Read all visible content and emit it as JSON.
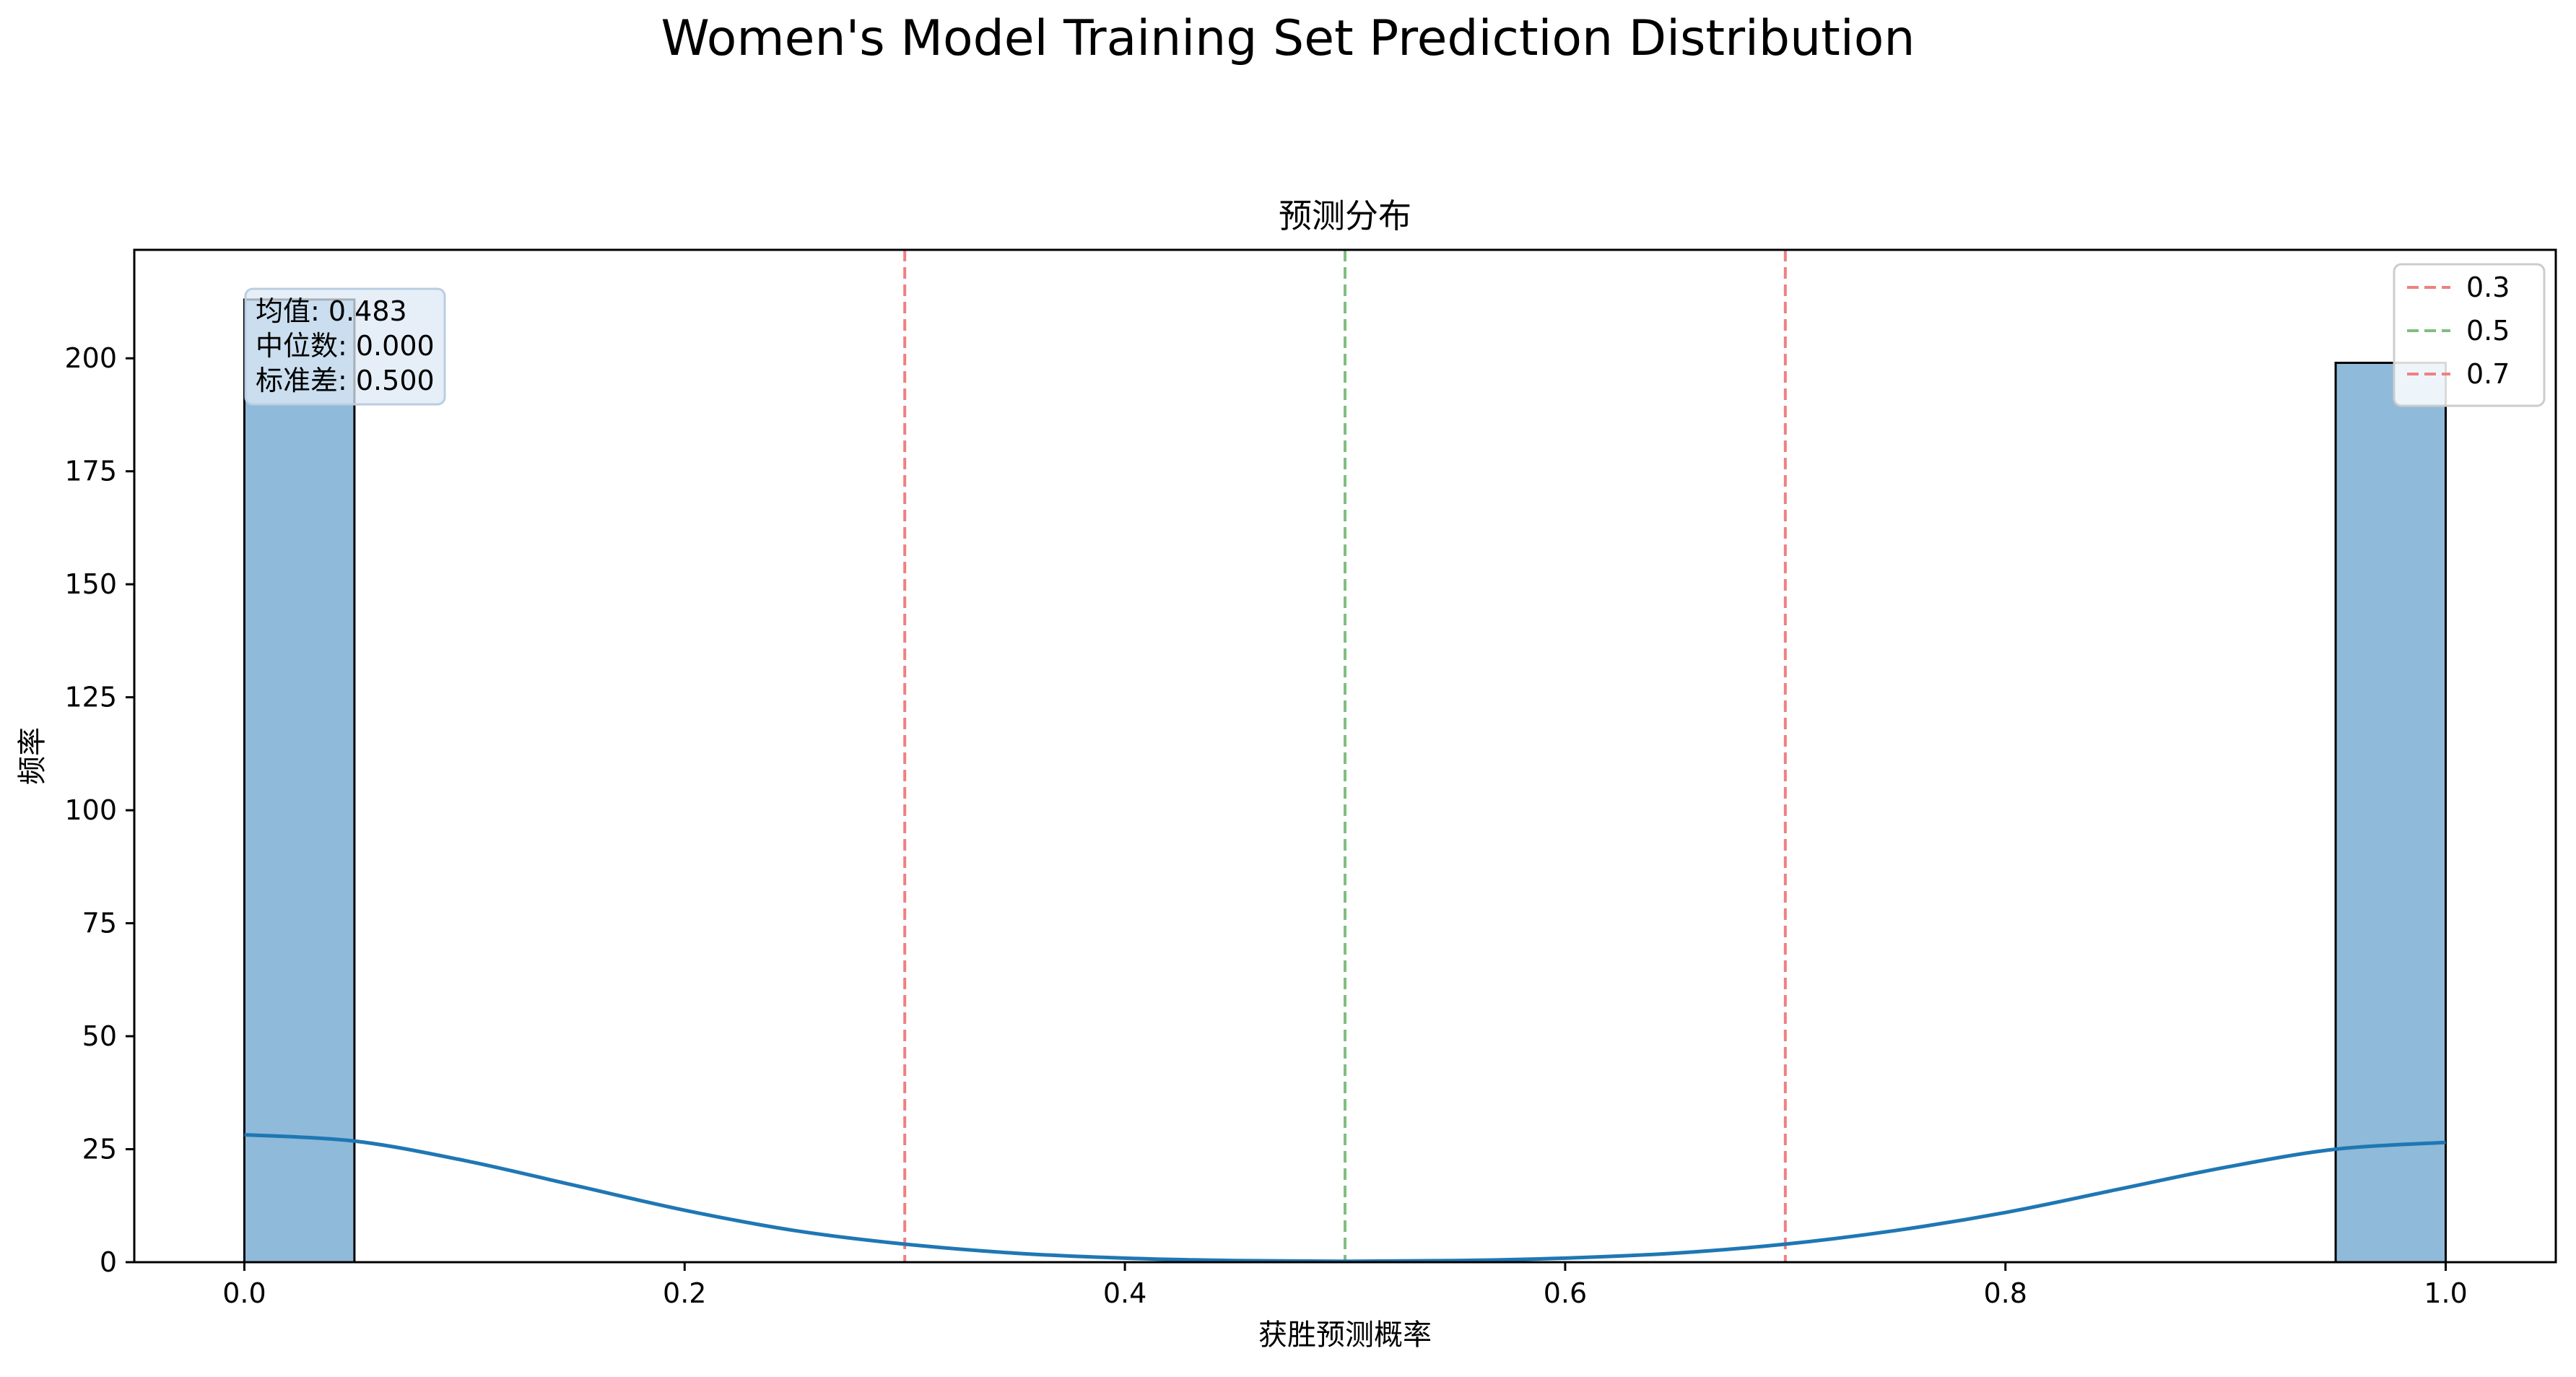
{
  "figure": {
    "suptitle": "Women's Model Training Set Prediction Distribution"
  },
  "chart_data": {
    "type": "bar",
    "title": "预测分布",
    "xlabel": "获胜预测概率",
    "ylabel": "频率",
    "xlim": [
      -0.05,
      1.05
    ],
    "ylim": [
      0,
      224
    ],
    "xticks": [
      "0.0",
      "0.2",
      "0.4",
      "0.6",
      "0.8",
      "1.0"
    ],
    "xtick_values": [
      0.0,
      0.2,
      0.4,
      0.6,
      0.8,
      1.0
    ],
    "yticks": [
      "0",
      "25",
      "50",
      "75",
      "100",
      "125",
      "150",
      "175",
      "200"
    ],
    "ytick_values": [
      0,
      25,
      50,
      75,
      100,
      125,
      150,
      175,
      200
    ],
    "grid": false,
    "bins": [
      {
        "x0": 0.0,
        "x1": 0.05,
        "count": 213
      },
      {
        "x0": 0.95,
        "x1": 1.0,
        "count": 199
      }
    ],
    "bar_color": "#8fbad9",
    "bar_edge_color": "#000000",
    "kde": {
      "color": "#1f77b4",
      "x": [
        0.0,
        0.05,
        0.1,
        0.15,
        0.2,
        0.25,
        0.3,
        0.35,
        0.4,
        0.45,
        0.5,
        0.55,
        0.6,
        0.65,
        0.7,
        0.75,
        0.8,
        0.85,
        0.9,
        0.95,
        1.0
      ],
      "y": [
        28.2,
        26.8,
        22.5,
        17.0,
        11.5,
        7.0,
        4.0,
        2.0,
        0.9,
        0.35,
        0.2,
        0.35,
        0.9,
        2.0,
        4.0,
        7.0,
        11.0,
        16.0,
        21.0,
        25.0,
        26.5
      ]
    },
    "vlines": [
      {
        "x": 0.3,
        "label": "0.3",
        "color": "#f08080"
      },
      {
        "x": 0.5,
        "label": "0.5",
        "color": "#7fbf7f"
      },
      {
        "x": 0.7,
        "label": "0.7",
        "color": "#f08080"
      }
    ],
    "legend_position": "top-right",
    "stats": {
      "lines": [
        "均值: 0.483",
        "中位数: 0.000",
        "标准差: 0.500"
      ]
    }
  }
}
